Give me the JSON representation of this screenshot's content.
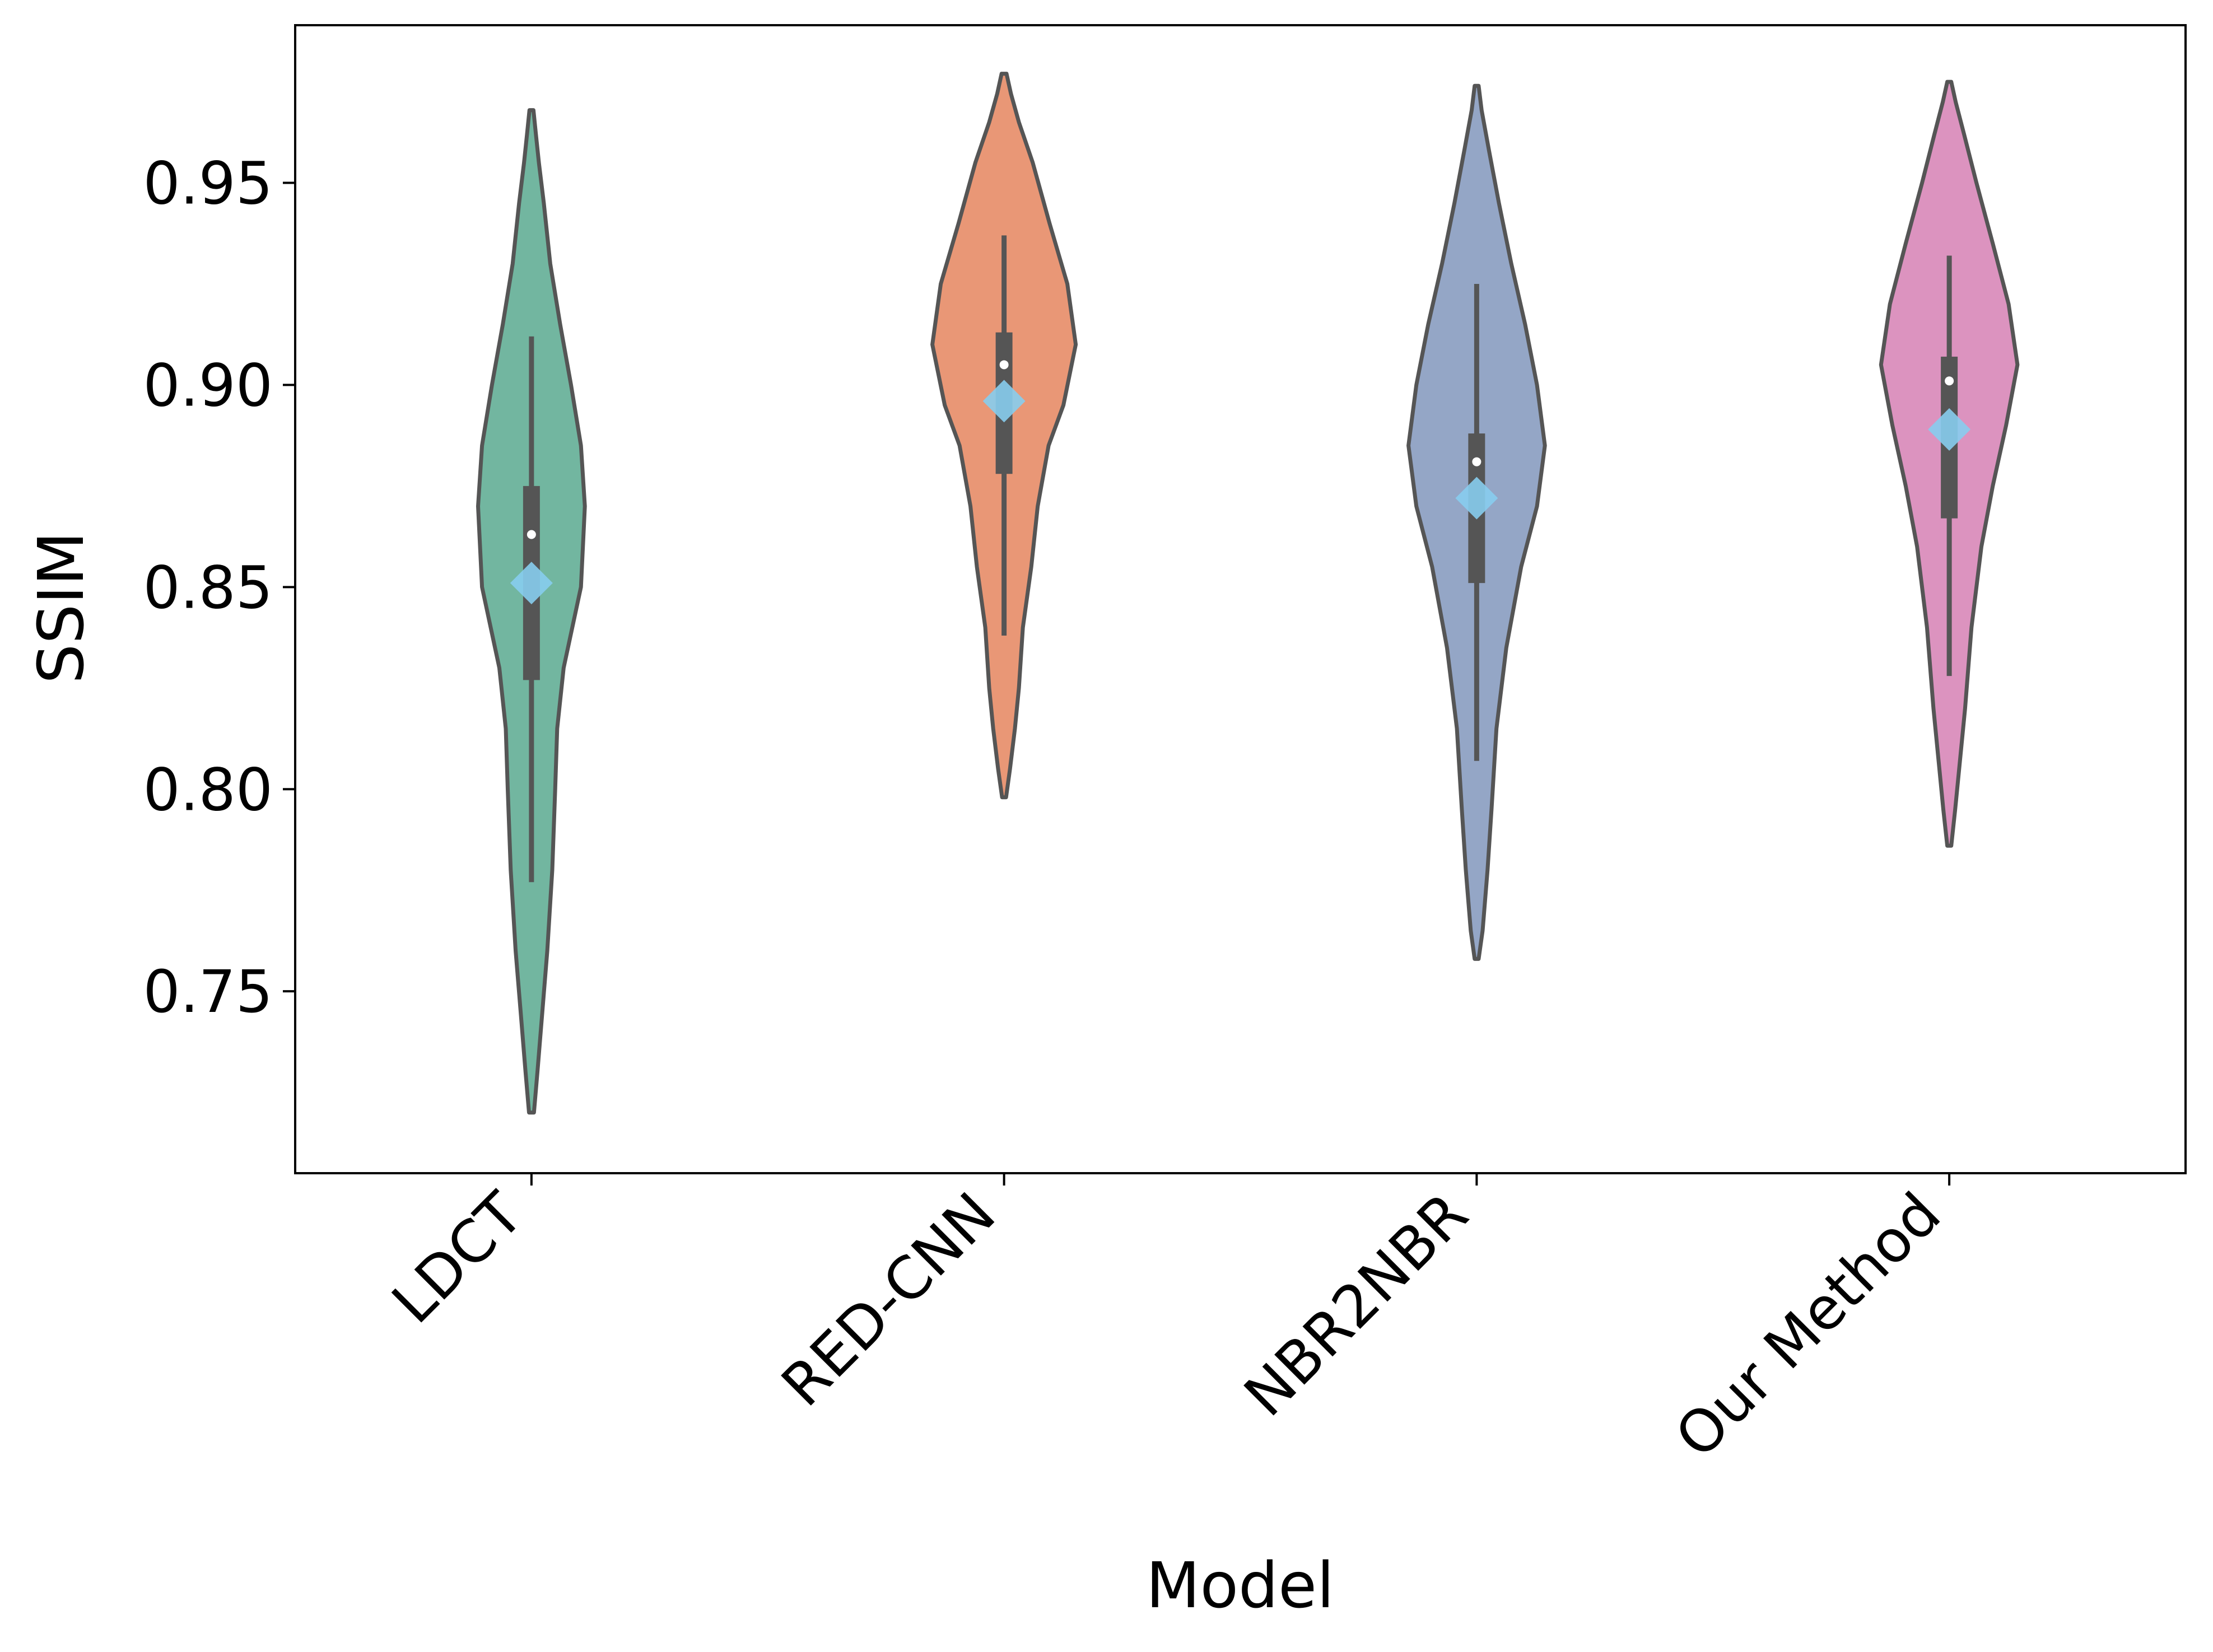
{
  "chart_data": {
    "type": "violin",
    "title": "",
    "xlabel": "Model",
    "ylabel": "SSIM",
    "ylim": [
      0.705,
      0.989
    ],
    "yticks": [
      0.75,
      0.8,
      0.85,
      0.9,
      0.95
    ],
    "ytick_labels": [
      "0.75",
      "0.80",
      "0.85",
      "0.90",
      "0.95"
    ],
    "categories": [
      "LDCT",
      "RED-CNN",
      "NBR2NBR",
      "Our Method"
    ],
    "colors": [
      "#72b6a0",
      "#e99776",
      "#94a6c6",
      "#dc93bf"
    ],
    "edge_color": "#555555",
    "mean_marker_color": "#87cdee",
    "series": [
      {
        "name": "LDCT",
        "min": 0.72,
        "max": 0.968,
        "q1": 0.827,
        "median": 0.863,
        "q3": 0.875,
        "whisker_low": 0.777,
        "whisker_high": 0.912,
        "mean": 0.851,
        "density": [
          [
            0.72,
            0.005
          ],
          [
            0.73,
            0.012
          ],
          [
            0.745,
            0.022
          ],
          [
            0.76,
            0.032
          ],
          [
            0.78,
            0.042
          ],
          [
            0.8,
            0.048
          ],
          [
            0.815,
            0.052
          ],
          [
            0.83,
            0.065
          ],
          [
            0.85,
            0.1
          ],
          [
            0.87,
            0.108
          ],
          [
            0.885,
            0.1
          ],
          [
            0.9,
            0.08
          ],
          [
            0.915,
            0.058
          ],
          [
            0.93,
            0.038
          ],
          [
            0.945,
            0.025
          ],
          [
            0.955,
            0.015
          ],
          [
            0.962,
            0.009
          ],
          [
            0.968,
            0.004
          ]
        ]
      },
      {
        "name": "RED-CNN",
        "min": 0.798,
        "max": 0.977,
        "q1": 0.878,
        "median": 0.905,
        "q3": 0.913,
        "whisker_low": 0.838,
        "whisker_high": 0.937,
        "mean": 0.896,
        "density": [
          [
            0.798,
            0.004
          ],
          [
            0.805,
            0.012
          ],
          [
            0.815,
            0.022
          ],
          [
            0.825,
            0.03
          ],
          [
            0.84,
            0.038
          ],
          [
            0.855,
            0.055
          ],
          [
            0.87,
            0.068
          ],
          [
            0.885,
            0.09
          ],
          [
            0.895,
            0.12
          ],
          [
            0.91,
            0.145
          ],
          [
            0.925,
            0.128
          ],
          [
            0.94,
            0.092
          ],
          [
            0.955,
            0.058
          ],
          [
            0.965,
            0.03
          ],
          [
            0.972,
            0.014
          ],
          [
            0.977,
            0.005
          ]
        ]
      },
      {
        "name": "NBR2NBR",
        "min": 0.758,
        "max": 0.974,
        "q1": 0.851,
        "median": 0.881,
        "q3": 0.888,
        "whisker_low": 0.807,
        "whisker_high": 0.925,
        "mean": 0.872,
        "density": [
          [
            0.758,
            0.004
          ],
          [
            0.765,
            0.012
          ],
          [
            0.78,
            0.022
          ],
          [
            0.795,
            0.03
          ],
          [
            0.815,
            0.04
          ],
          [
            0.835,
            0.06
          ],
          [
            0.855,
            0.09
          ],
          [
            0.87,
            0.122
          ],
          [
            0.885,
            0.138
          ],
          [
            0.9,
            0.122
          ],
          [
            0.915,
            0.098
          ],
          [
            0.93,
            0.07
          ],
          [
            0.945,
            0.045
          ],
          [
            0.958,
            0.025
          ],
          [
            0.968,
            0.01
          ],
          [
            0.974,
            0.004
          ]
        ]
      },
      {
        "name": "Our Method",
        "min": 0.786,
        "max": 0.975,
        "q1": 0.867,
        "median": 0.901,
        "q3": 0.907,
        "whisker_low": 0.828,
        "whisker_high": 0.932,
        "mean": 0.889,
        "density": [
          [
            0.786,
            0.004
          ],
          [
            0.795,
            0.012
          ],
          [
            0.805,
            0.02
          ],
          [
            0.82,
            0.032
          ],
          [
            0.84,
            0.045
          ],
          [
            0.86,
            0.065
          ],
          [
            0.875,
            0.088
          ],
          [
            0.89,
            0.115
          ],
          [
            0.905,
            0.138
          ],
          [
            0.92,
            0.12
          ],
          [
            0.935,
            0.088
          ],
          [
            0.95,
            0.055
          ],
          [
            0.962,
            0.03
          ],
          [
            0.97,
            0.013
          ],
          [
            0.975,
            0.004
          ]
        ]
      }
    ]
  }
}
